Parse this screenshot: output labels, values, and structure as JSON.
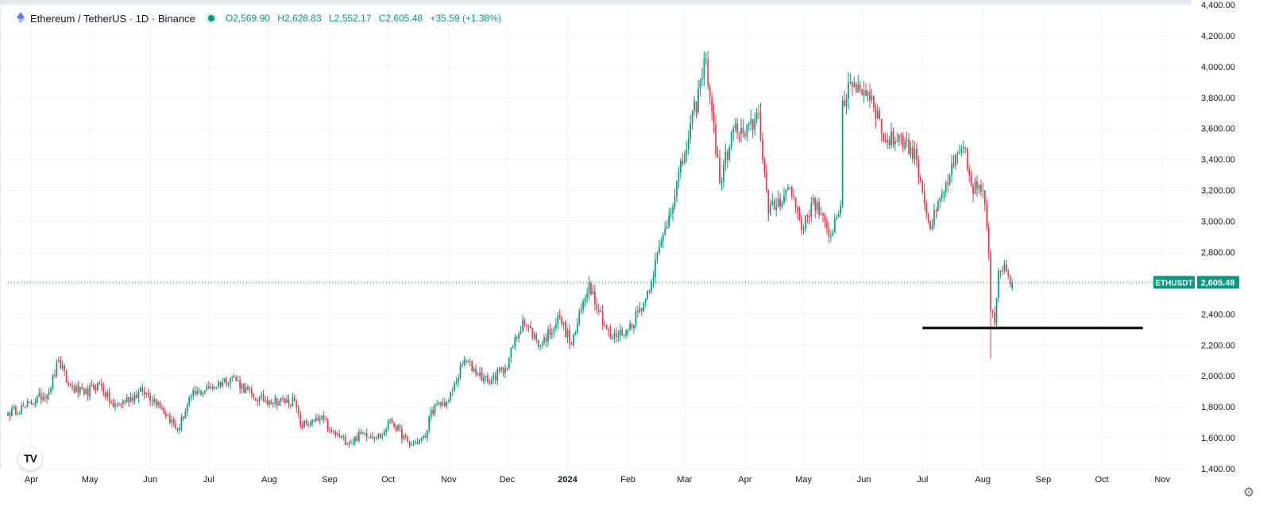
{
  "legend": {
    "symbol": "Ethereum / TetherUS · 1D · Binance",
    "open_label": "O",
    "open": "2,569.90",
    "high_label": "H",
    "high": "2,628.83",
    "low_label": "L",
    "low": "2,552.17",
    "close_label": "C",
    "close": "2,605.48",
    "change": "+35.59 (+1.38%)"
  },
  "price_label": {
    "ticker": "ETHUSDT",
    "value": "2,605.48"
  },
  "icons": {
    "logo": "tradingview-logo-icon",
    "settings": "gear-icon"
  },
  "colors": {
    "up": "#089981",
    "down": "#F23645",
    "grid": "#F0F3FA",
    "support_line": "#000000"
  },
  "chart_data": {
    "type": "candlestick",
    "title": "Ethereum / TetherUS · 1D · Binance",
    "interval": "1D",
    "y_axis": {
      "ticks": [
        "1,400.00",
        "1,600.00",
        "1,800.00",
        "2,000.00",
        "2,200.00",
        "2,400.00",
        "2,600.00",
        "2,800.00",
        "3,000.00",
        "3,200.00",
        "3,400.00",
        "3,600.00",
        "3,800.00",
        "4,000.00",
        "4,200.00",
        "4,400.00"
      ],
      "range": [
        1400,
        4400
      ],
      "grid": true
    },
    "x_axis": {
      "ticks": [
        {
          "label": "Apr",
          "date": "2023-04-01"
        },
        {
          "label": "May",
          "date": "2023-05-01"
        },
        {
          "label": "Jun",
          "date": "2023-06-01"
        },
        {
          "label": "Jul",
          "date": "2023-07-01"
        },
        {
          "label": "Aug",
          "date": "2023-08-01"
        },
        {
          "label": "Sep",
          "date": "2023-09-01"
        },
        {
          "label": "Oct",
          "date": "2023-10-01"
        },
        {
          "label": "Nov",
          "date": "2023-11-01"
        },
        {
          "label": "Dec",
          "date": "2023-12-01"
        },
        {
          "label": "2024",
          "date": "2024-01-01",
          "bold": true
        },
        {
          "label": "Feb",
          "date": "2024-02-01"
        },
        {
          "label": "Mar",
          "date": "2024-03-01"
        },
        {
          "label": "Apr",
          "date": "2024-04-01"
        },
        {
          "label": "May",
          "date": "2024-05-01"
        },
        {
          "label": "Jun",
          "date": "2024-06-01"
        },
        {
          "label": "Jul",
          "date": "2024-07-01"
        },
        {
          "label": "Aug",
          "date": "2024-08-01"
        },
        {
          "label": "Sep",
          "date": "2024-09-01"
        },
        {
          "label": "Oct",
          "date": "2024-10-01"
        },
        {
          "label": "Nov",
          "date": "2024-11-01"
        }
      ],
      "range": [
        "2023-03-20",
        "2024-11-16"
      ],
      "grid": true
    },
    "price_path": [
      {
        "date": "2023-03-20",
        "price": 1760
      },
      {
        "date": "2023-03-29",
        "price": 1800
      },
      {
        "date": "2023-04-10",
        "price": 1900
      },
      {
        "date": "2023-04-15",
        "price": 2100
      },
      {
        "date": "2023-04-20",
        "price": 1940
      },
      {
        "date": "2023-04-28",
        "price": 1880
      },
      {
        "date": "2023-05-06",
        "price": 1950
      },
      {
        "date": "2023-05-13",
        "price": 1800
      },
      {
        "date": "2023-05-28",
        "price": 1900
      },
      {
        "date": "2023-06-05",
        "price": 1830
      },
      {
        "date": "2023-06-15",
        "price": 1650
      },
      {
        "date": "2023-06-22",
        "price": 1870
      },
      {
        "date": "2023-07-01",
        "price": 1920
      },
      {
        "date": "2023-07-13",
        "price": 1995
      },
      {
        "date": "2023-07-24",
        "price": 1860
      },
      {
        "date": "2023-08-01",
        "price": 1840
      },
      {
        "date": "2023-08-14",
        "price": 1835
      },
      {
        "date": "2023-08-17",
        "price": 1680
      },
      {
        "date": "2023-08-29",
        "price": 1720
      },
      {
        "date": "2023-09-01",
        "price": 1640
      },
      {
        "date": "2023-09-11",
        "price": 1570
      },
      {
        "date": "2023-09-18",
        "price": 1630
      },
      {
        "date": "2023-09-28",
        "price": 1610
      },
      {
        "date": "2023-10-02",
        "price": 1720
      },
      {
        "date": "2023-10-12",
        "price": 1550
      },
      {
        "date": "2023-10-20",
        "price": 1600
      },
      {
        "date": "2023-10-23",
        "price": 1780
      },
      {
        "date": "2023-11-01",
        "price": 1840
      },
      {
        "date": "2023-11-09",
        "price": 2100
      },
      {
        "date": "2023-11-21",
        "price": 1960
      },
      {
        "date": "2023-11-30",
        "price": 2050
      },
      {
        "date": "2023-12-09",
        "price": 2360
      },
      {
        "date": "2023-12-18",
        "price": 2200
      },
      {
        "date": "2023-12-28",
        "price": 2380
      },
      {
        "date": "2024-01-03",
        "price": 2200
      },
      {
        "date": "2024-01-12",
        "price": 2600
      },
      {
        "date": "2024-01-23",
        "price": 2240
      },
      {
        "date": "2024-02-01",
        "price": 2300
      },
      {
        "date": "2024-02-10",
        "price": 2500
      },
      {
        "date": "2024-02-20",
        "price": 2950
      },
      {
        "date": "2024-03-01",
        "price": 3430
      },
      {
        "date": "2024-03-12",
        "price": 4050
      },
      {
        "date": "2024-03-19",
        "price": 3250
      },
      {
        "date": "2024-03-26",
        "price": 3600
      },
      {
        "date": "2024-04-01",
        "price": 3550
      },
      {
        "date": "2024-04-08",
        "price": 3700
      },
      {
        "date": "2024-04-13",
        "price": 3050
      },
      {
        "date": "2024-04-24",
        "price": 3220
      },
      {
        "date": "2024-05-01",
        "price": 2950
      },
      {
        "date": "2024-05-06",
        "price": 3150
      },
      {
        "date": "2024-05-14",
        "price": 2900
      },
      {
        "date": "2024-05-20",
        "price": 3100
      },
      {
        "date": "2024-05-21",
        "price": 3780
      },
      {
        "date": "2024-05-27",
        "price": 3890
      },
      {
        "date": "2024-06-05",
        "price": 3810
      },
      {
        "date": "2024-06-12",
        "price": 3510
      },
      {
        "date": "2024-06-20",
        "price": 3550
      },
      {
        "date": "2024-06-28",
        "price": 3400
      },
      {
        "date": "2024-07-05",
        "price": 2950
      },
      {
        "date": "2024-07-15",
        "price": 3300
      },
      {
        "date": "2024-07-22",
        "price": 3480
      },
      {
        "date": "2024-07-26",
        "price": 3230
      },
      {
        "date": "2024-08-01",
        "price": 3200
      },
      {
        "date": "2024-08-04",
        "price": 2800
      },
      {
        "date": "2024-08-05",
        "price": 2420
      },
      {
        "date": "2024-08-07",
        "price": 2340
      },
      {
        "date": "2024-08-09",
        "price": 2680
      },
      {
        "date": "2024-08-12",
        "price": 2720
      },
      {
        "date": "2024-08-16",
        "price": 2605
      }
    ],
    "extremes": [
      {
        "date": "2024-03-12",
        "high": 4093
      },
      {
        "date": "2024-08-05",
        "low": 2111
      }
    ],
    "last": {
      "date": "2024-08-16",
      "open": 2569.9,
      "high": 2628.83,
      "low": 2552.17,
      "close": 2605.48
    },
    "annotations": [
      {
        "type": "horizontal_segment",
        "price": 2310,
        "from": "2024-07-01",
        "to": "2024-10-22",
        "color": "#000000"
      }
    ]
  }
}
